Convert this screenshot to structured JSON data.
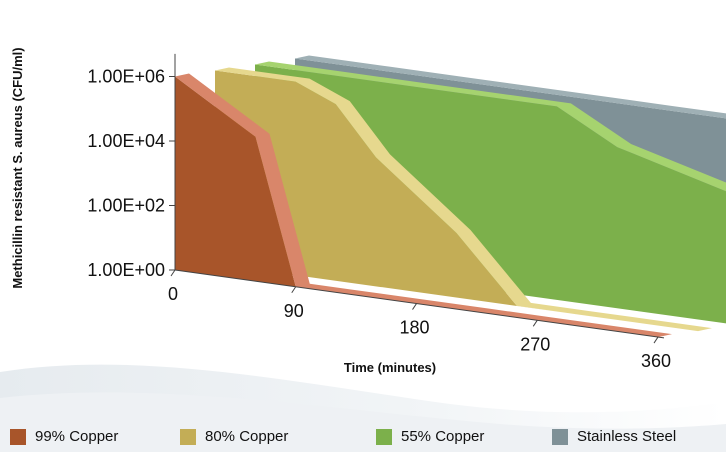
{
  "chart_data": {
    "type": "area",
    "projection": "3d-stacked-ribbons",
    "ylabel": "Methicillin resistant S. aureus (CFU/ml)",
    "xlabel": "Time (minutes)",
    "y_scale": "log10",
    "ylim": [
      1,
      10000000
    ],
    "y_ticks": [
      "1.00E+00",
      "1.00E+02",
      "1.00E+04",
      "1.00E+06"
    ],
    "x_ticks": [
      "0",
      "90",
      "180",
      "270",
      "360"
    ],
    "x": [
      0,
      60,
      90,
      120,
      180,
      225,
      270,
      360
    ],
    "series": [
      {
        "name": "99% Copper",
        "color": "#a8552a",
        "top_color": "#d9866a",
        "values": [
          1000000,
          30000,
          1,
          1,
          1,
          1,
          1,
          1
        ]
      },
      {
        "name": "80% Copper",
        "color": "#c3ad56",
        "top_color": "#e6d88e",
        "values": [
          1000000,
          1000000,
          300000,
          10000,
          100,
          1,
          1,
          1
        ]
      },
      {
        "name": "55% Copper",
        "color": "#7cb04b",
        "top_color": "#a6d36f",
        "values": [
          1000000,
          1000000,
          1000000,
          1000000,
          1000000,
          1000000,
          100000,
          10000
        ]
      },
      {
        "name": "Stainless Steel",
        "color": "#7f9197",
        "top_color": "#9fb0b5",
        "values": [
          1000000,
          1000000,
          1000000,
          1000000,
          1000000,
          1000000,
          1000000,
          1000000
        ]
      }
    ],
    "legend_position": "bottom",
    "grid": false
  }
}
